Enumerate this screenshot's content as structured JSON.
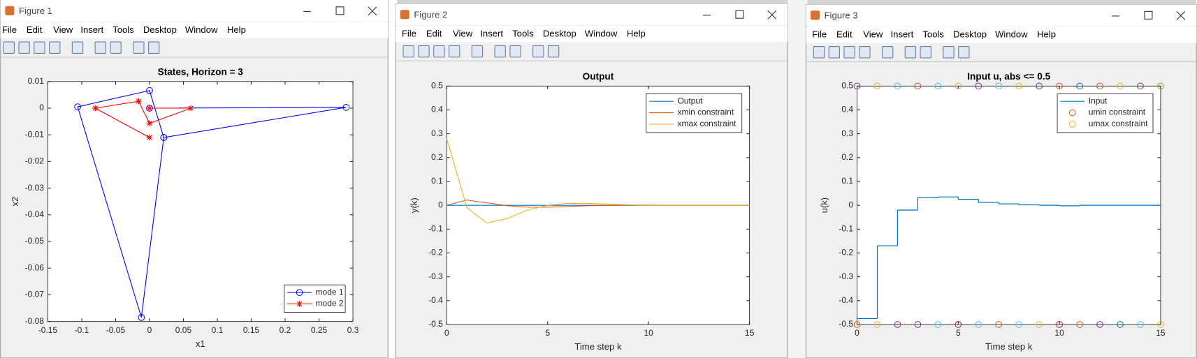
{
  "windows": [
    {
      "title": "Figure 1",
      "menu": [
        "File",
        "Edit",
        "View",
        "Insert",
        "Tools",
        "Desktop",
        "Window",
        "Help"
      ]
    },
    {
      "title": "Figure 2",
      "menu": [
        "File",
        "Edit",
        "View",
        "Insert",
        "Tools",
        "Desktop",
        "Window",
        "Help"
      ]
    },
    {
      "title": "Figure 3",
      "menu": [
        "File",
        "Edit",
        "View",
        "Insert",
        "Tools",
        "Desktop",
        "Window",
        "Help"
      ]
    }
  ],
  "chart_data": [
    {
      "type": "line",
      "title": "States, Horizon = 3",
      "xlabel": "x1",
      "ylabel": "x2",
      "xlim": [
        -0.15,
        0.3
      ],
      "ylim": [
        -0.08,
        0.01
      ],
      "xticks": [
        -0.15,
        -0.1,
        -0.05,
        0,
        0.05,
        0.1,
        0.15,
        0.2,
        0.25,
        0.3
      ],
      "yticks": [
        0.01,
        0,
        -0.01,
        -0.02,
        -0.03,
        -0.04,
        -0.05,
        -0.06,
        -0.07,
        -0.08
      ],
      "legend": "lower right",
      "series": [
        {
          "name": "mode 1",
          "color": "#0000ff",
          "marker": "o",
          "linestyle": "solid",
          "x": [
            0,
            0.29,
            0.021,
            0,
            -0.106,
            -0.012,
            0.021
          ],
          "values": [
            0,
            0.0003,
            -0.011,
            0.0066,
            0.0005,
            -0.0785,
            -0.011
          ]
        },
        {
          "name": "mode 2",
          "color": "#ff0000",
          "marker": "*",
          "linestyle": "solid",
          "x": [
            0,
            -0.08,
            -0.016,
            0,
            0.061,
            0
          ],
          "values": [
            -0.011,
            0,
            0.0026,
            -0.0057,
            0,
            0
          ]
        }
      ]
    },
    {
      "type": "line",
      "title": "Output",
      "xlabel": "Time step k",
      "ylabel": "y(k)",
      "xlim": [
        0,
        15
      ],
      "ylim": [
        -0.5,
        0.5
      ],
      "xticks": [
        0,
        5,
        10,
        15
      ],
      "yticks": [
        0.5,
        0.4,
        0.3,
        0.2,
        0.1,
        0,
        -0.1,
        -0.2,
        -0.3,
        -0.4,
        -0.5
      ],
      "legend": "upper right",
      "series": [
        {
          "name": "Output",
          "color": "#0072BD",
          "marker": "none",
          "linestyle": "solid",
          "x": [
            0,
            1,
            2,
            3,
            4,
            5,
            6,
            7,
            8,
            9,
            10,
            11,
            12,
            13,
            14,
            15
          ],
          "values": [
            0,
            0,
            0,
            0,
            0,
            0,
            0,
            0,
            0,
            0,
            0,
            0,
            0,
            0,
            0,
            0
          ]
        },
        {
          "name": "xmin constraint",
          "color": "#D95319",
          "marker": "none",
          "linestyle": "solid",
          "x": [
            0,
            1,
            2,
            3,
            4,
            5,
            6,
            7,
            8,
            9,
            10,
            11,
            12,
            13,
            14,
            15
          ],
          "values": [
            0,
            0.022,
            0.01,
            -0.002,
            -0.008,
            -0.008,
            -0.005,
            -0.002,
            0,
            0.001,
            0.001,
            0,
            0,
            0,
            0,
            0
          ]
        },
        {
          "name": "xmax constraint",
          "color": "#EDB120",
          "marker": "none",
          "linestyle": "solid",
          "x": [
            0,
            1,
            2,
            3,
            4,
            5,
            6,
            7,
            8,
            9,
            10,
            11,
            12,
            13,
            14,
            15
          ],
          "values": [
            0.28,
            -0.01,
            -0.075,
            -0.055,
            -0.02,
            0,
            0.008,
            0.008,
            0.005,
            0.002,
            0,
            0,
            0,
            0,
            0,
            0
          ]
        }
      ]
    },
    {
      "type": "line",
      "title": "Input u, abs <= 0.5",
      "xlabel": "Time step k",
      "ylabel": "u(k)",
      "xlim": [
        0,
        15
      ],
      "ylim": [
        -0.5,
        0.5
      ],
      "xticks": [
        0,
        5,
        10,
        15
      ],
      "yticks": [
        0.5,
        0.4,
        0.3,
        0.2,
        0.1,
        0,
        -0.1,
        -0.2,
        -0.3,
        -0.4,
        -0.5
      ],
      "legend": "upper right",
      "series": [
        {
          "name": "Input",
          "color": "#0072BD",
          "marker": "none",
          "linestyle": "steps",
          "x": [
            0,
            1,
            2,
            3,
            4,
            5,
            6,
            7,
            8,
            9,
            10,
            11,
            12,
            13,
            14,
            15
          ],
          "values": [
            -0.475,
            -0.17,
            -0.02,
            0.032,
            0.035,
            0.025,
            0.012,
            0.006,
            0.002,
            0,
            -0.002,
            0,
            0,
            0,
            0,
            0
          ]
        },
        {
          "name": "umin constraint",
          "color": "#D95319",
          "marker": "o",
          "linestyle": "none",
          "x": [
            0,
            1,
            2,
            3,
            4,
            5,
            6,
            7,
            8,
            9,
            10,
            11,
            12,
            13,
            14,
            15
          ],
          "values": [
            -0.5,
            -0.5,
            -0.5,
            -0.5,
            -0.5,
            -0.5,
            -0.5,
            -0.5,
            -0.5,
            -0.5,
            -0.5,
            -0.5,
            -0.5,
            -0.5,
            -0.5,
            -0.5
          ],
          "marker_colors": [
            "#D95319",
            "#EDB120",
            "#7E2F8E",
            "#7E2F8E",
            "#4DBEEE",
            "#A2142F",
            "#4DBEEE",
            "#D95319",
            "#4DBEEE",
            "#EDB120",
            "#A2142F",
            "#D95319",
            "#7E2F8E",
            "#0072BD",
            "#4DBEEE",
            "#EDB120"
          ]
        },
        {
          "name": "umax constraint",
          "color": "#EDB120",
          "marker": "o",
          "linestyle": "none",
          "x": [
            0,
            1,
            2,
            3,
            4,
            5,
            6,
            7,
            8,
            9,
            10,
            11,
            12,
            13,
            14,
            15
          ],
          "values": [
            0.5,
            0.5,
            0.5,
            0.5,
            0.5,
            0.5,
            0.5,
            0.5,
            0.5,
            0.5,
            0.5,
            0.5,
            0.5,
            0.5,
            0.5,
            0.5
          ],
          "marker_colors": [
            "#7E2F8E",
            "#EDB120",
            "#4DBEEE",
            "#D95319",
            "#4DBEEE",
            "#EDB120",
            "#7E2F8E",
            "#4DBEEE",
            "#EDB120",
            "#7E2F8E",
            "#D95319",
            "#0072BD",
            "#D95319",
            "#EDB120",
            "#7E2F8E",
            "#77AC30"
          ]
        }
      ]
    }
  ]
}
